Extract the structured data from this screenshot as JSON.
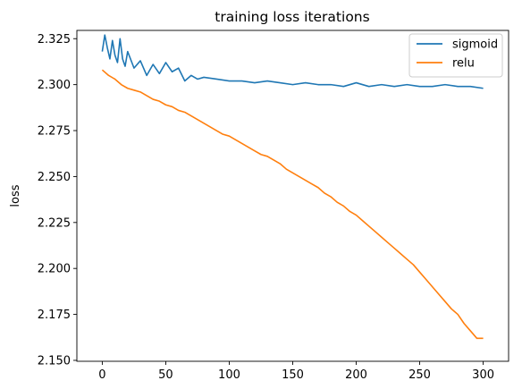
{
  "chart_data": {
    "type": "line",
    "title": "training loss iterations",
    "xlabel": "",
    "ylabel": "loss",
    "xlim": [
      -20,
      320
    ],
    "ylim": [
      2.1495,
      2.3295
    ],
    "xticks": [
      0,
      50,
      100,
      150,
      200,
      250,
      300
    ],
    "yticks": [
      2.15,
      2.175,
      2.2,
      2.225,
      2.25,
      2.275,
      2.3,
      2.325
    ],
    "ytick_labels": [
      "2.150",
      "2.175",
      "2.200",
      "2.225",
      "2.250",
      "2.275",
      "2.300",
      "2.325"
    ],
    "grid": false,
    "legend_position": "top-right",
    "series": [
      {
        "name": "sigmoid",
        "color": "#1f77b4",
        "x": [
          0,
          2,
          4,
          6,
          8,
          10,
          12,
          14,
          16,
          18,
          20,
          25,
          30,
          35,
          40,
          45,
          50,
          55,
          60,
          65,
          70,
          75,
          80,
          90,
          100,
          110,
          120,
          130,
          140,
          150,
          160,
          170,
          180,
          190,
          200,
          210,
          220,
          230,
          240,
          250,
          260,
          270,
          280,
          290,
          300
        ],
        "y": [
          2.318,
          2.327,
          2.32,
          2.314,
          2.324,
          2.316,
          2.312,
          2.325,
          2.314,
          2.31,
          2.318,
          2.309,
          2.313,
          2.305,
          2.311,
          2.306,
          2.312,
          2.307,
          2.309,
          2.302,
          2.305,
          2.303,
          2.304,
          2.303,
          2.302,
          2.302,
          2.301,
          2.302,
          2.301,
          2.3,
          2.301,
          2.3,
          2.3,
          2.299,
          2.301,
          2.299,
          2.3,
          2.299,
          2.3,
          2.299,
          2.299,
          2.3,
          2.299,
          2.299,
          2.298
        ]
      },
      {
        "name": "relu",
        "color": "#ff7f0e",
        "x": [
          0,
          5,
          10,
          15,
          20,
          25,
          30,
          35,
          40,
          45,
          50,
          55,
          60,
          65,
          70,
          75,
          80,
          85,
          90,
          95,
          100,
          105,
          110,
          115,
          120,
          125,
          130,
          135,
          140,
          145,
          150,
          155,
          160,
          165,
          170,
          175,
          180,
          185,
          190,
          195,
          200,
          205,
          210,
          215,
          220,
          225,
          230,
          235,
          240,
          245,
          250,
          255,
          260,
          265,
          270,
          275,
          280,
          285,
          290,
          295,
          300
        ],
        "y": [
          2.308,
          2.305,
          2.303,
          2.3,
          2.298,
          2.297,
          2.296,
          2.294,
          2.292,
          2.291,
          2.289,
          2.288,
          2.286,
          2.285,
          2.283,
          2.281,
          2.279,
          2.277,
          2.275,
          2.273,
          2.272,
          2.27,
          2.268,
          2.266,
          2.264,
          2.262,
          2.261,
          2.259,
          2.257,
          2.254,
          2.252,
          2.25,
          2.248,
          2.246,
          2.244,
          2.241,
          2.239,
          2.236,
          2.234,
          2.231,
          2.229,
          2.226,
          2.223,
          2.22,
          2.217,
          2.214,
          2.211,
          2.208,
          2.205,
          2.202,
          2.198,
          2.194,
          2.19,
          2.186,
          2.182,
          2.178,
          2.175,
          2.17,
          2.166,
          2.162,
          2.162
        ]
      }
    ]
  }
}
